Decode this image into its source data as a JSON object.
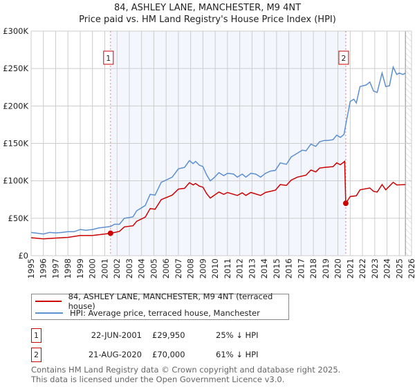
{
  "chart_data": {
    "type": "line",
    "title": "84, ASHLEY LANE, MANCHESTER, M9 4NT",
    "subtitle": "Price paid vs. HM Land Registry's House Price Index (HPI)",
    "xlim": [
      1995,
      2026
    ],
    "ylim": [
      0,
      300000
    ],
    "x_ticks": [
      "1995",
      "1996",
      "1997",
      "1998",
      "1999",
      "2000",
      "2001",
      "2002",
      "2003",
      "2004",
      "2005",
      "2006",
      "2007",
      "2008",
      "2009",
      "2010",
      "2011",
      "2012",
      "2013",
      "2014",
      "2015",
      "2016",
      "2017",
      "2018",
      "2019",
      "2020",
      "2021",
      "2022",
      "2023",
      "2024",
      "2025",
      "2026"
    ],
    "y_ticks": [
      {
        "v": 0,
        "label": "£0"
      },
      {
        "v": 50000,
        "label": "£50K"
      },
      {
        "v": 100000,
        "label": "£100K"
      },
      {
        "v": 150000,
        "label": "£150K"
      },
      {
        "v": 200000,
        "label": "£200K"
      },
      {
        "v": 250000,
        "label": "£250K"
      },
      {
        "v": 300000,
        "label": "£300K"
      }
    ],
    "grid": true,
    "ownership_shaded_range": [
      2001.47,
      2020.64
    ],
    "forecast_hatched_from": 2025.5,
    "series": [
      {
        "name": "84, ASHLEY LANE, MANCHESTER, M9 4NT (terraced house)",
        "color": "#cc0000",
        "points": [
          [
            1995,
            24
          ],
          [
            1996,
            22.5
          ],
          [
            1997,
            23.5
          ],
          [
            1998,
            24.5
          ],
          [
            1999,
            27
          ],
          [
            2000,
            27
          ],
          [
            2001,
            29
          ],
          [
            2001.47,
            29.95
          ],
          [
            2002.2,
            32.5
          ],
          [
            2002.6,
            38.5
          ],
          [
            2003.3,
            40
          ],
          [
            2003.6,
            46
          ],
          [
            2004.3,
            51.5
          ],
          [
            2004.7,
            63
          ],
          [
            2005.1,
            62
          ],
          [
            2005.6,
            75
          ],
          [
            2006.5,
            81
          ],
          [
            2007,
            89
          ],
          [
            2007.5,
            90
          ],
          [
            2007.9,
            97.5
          ],
          [
            2008.2,
            94.5
          ],
          [
            2008.4,
            96.5
          ],
          [
            2008.7,
            93
          ],
          [
            2009,
            91.5
          ],
          [
            2009.3,
            83
          ],
          [
            2009.6,
            77
          ],
          [
            2010.3,
            85
          ],
          [
            2010.7,
            82
          ],
          [
            2011,
            84.5
          ],
          [
            2011.8,
            80.5
          ],
          [
            2012.2,
            84
          ],
          [
            2012.5,
            80.5
          ],
          [
            2012.9,
            84.5
          ],
          [
            2013.7,
            80.5
          ],
          [
            2014.1,
            84.5
          ],
          [
            2014.9,
            87.5
          ],
          [
            2015.3,
            95
          ],
          [
            2015.8,
            94
          ],
          [
            2016.2,
            101
          ],
          [
            2016.7,
            105
          ],
          [
            2017.4,
            107.5
          ],
          [
            2017.8,
            114.5
          ],
          [
            2018.2,
            112
          ],
          [
            2018.5,
            117
          ],
          [
            2018.9,
            118
          ],
          [
            2019.6,
            119
          ],
          [
            2019.9,
            124
          ],
          [
            2020.2,
            121.5
          ],
          [
            2020.55,
            126
          ],
          [
            2020.64,
            70
          ],
          [
            2021,
            79
          ],
          [
            2021.5,
            80
          ],
          [
            2021.8,
            88
          ],
          [
            2022.6,
            90.5
          ],
          [
            2022.9,
            86
          ],
          [
            2023.2,
            85
          ],
          [
            2023.6,
            95
          ],
          [
            2023.9,
            88
          ],
          [
            2024.5,
            98
          ],
          [
            2024.8,
            94.5
          ],
          [
            2025.5,
            95
          ]
        ]
      },
      {
        "name": "HPI: Average price, terraced house, Manchester",
        "color": "#5b8fd0",
        "points": [
          [
            1995,
            31
          ],
          [
            1995.5,
            30
          ],
          [
            1996,
            29
          ],
          [
            1996.5,
            31
          ],
          [
            1997,
            30.5
          ],
          [
            1997.5,
            31
          ],
          [
            1998,
            32
          ],
          [
            1998.5,
            32
          ],
          [
            1999,
            35
          ],
          [
            1999.5,
            34
          ],
          [
            2000,
            35
          ],
          [
            2000.5,
            37
          ],
          [
            2001,
            38
          ],
          [
            2001.47,
            39
          ],
          [
            2001.8,
            42
          ],
          [
            2002.2,
            42
          ],
          [
            2002.6,
            50
          ],
          [
            2003,
            51
          ],
          [
            2003.3,
            52
          ],
          [
            2003.6,
            60
          ],
          [
            2004,
            64
          ],
          [
            2004.3,
            67
          ],
          [
            2004.7,
            82
          ],
          [
            2005.1,
            81
          ],
          [
            2005.6,
            98
          ],
          [
            2006,
            101
          ],
          [
            2006.5,
            105
          ],
          [
            2007,
            116
          ],
          [
            2007.5,
            118
          ],
          [
            2007.9,
            127
          ],
          [
            2008.2,
            123
          ],
          [
            2008.4,
            126
          ],
          [
            2008.7,
            121
          ],
          [
            2009,
            119
          ],
          [
            2009.3,
            108
          ],
          [
            2009.6,
            100
          ],
          [
            2009.9,
            104
          ],
          [
            2010.3,
            111
          ],
          [
            2010.7,
            107
          ],
          [
            2011,
            110
          ],
          [
            2011.5,
            109
          ],
          [
            2011.8,
            105
          ],
          [
            2012.2,
            109
          ],
          [
            2012.5,
            105
          ],
          [
            2012.9,
            110
          ],
          [
            2013.3,
            109
          ],
          [
            2013.7,
            105
          ],
          [
            2014.1,
            110
          ],
          [
            2014.5,
            113
          ],
          [
            2014.9,
            114
          ],
          [
            2015.3,
            124
          ],
          [
            2015.8,
            122
          ],
          [
            2016.2,
            132
          ],
          [
            2016.7,
            137
          ],
          [
            2017.1,
            141
          ],
          [
            2017.4,
            140
          ],
          [
            2017.8,
            149
          ],
          [
            2018.2,
            146
          ],
          [
            2018.5,
            152
          ],
          [
            2018.9,
            154
          ],
          [
            2019.2,
            154
          ],
          [
            2019.6,
            155
          ],
          [
            2019.9,
            161
          ],
          [
            2020.2,
            158
          ],
          [
            2020.5,
            162
          ],
          [
            2020.64,
            175
          ],
          [
            2021,
            206
          ],
          [
            2021.3,
            209
          ],
          [
            2021.5,
            204
          ],
          [
            2021.8,
            226
          ],
          [
            2022.3,
            228
          ],
          [
            2022.6,
            232
          ],
          [
            2022.9,
            220
          ],
          [
            2023.2,
            218
          ],
          [
            2023.6,
            244
          ],
          [
            2023.9,
            226
          ],
          [
            2024.2,
            227
          ],
          [
            2024.5,
            252
          ],
          [
            2024.8,
            242
          ],
          [
            2025,
            244
          ],
          [
            2025.3,
            242
          ],
          [
            2025.5,
            244
          ]
        ]
      }
    ],
    "y_units_in_series": "thousands GBP",
    "annotations": [
      {
        "label": "1",
        "x": 2001.47,
        "y": 29950
      },
      {
        "label": "2",
        "x": 2020.64,
        "y": 70000
      }
    ]
  },
  "legend": {
    "property": "84, ASHLEY LANE, MANCHESTER, M9 4NT (terraced house)",
    "hpi": "HPI: Average price, terraced house, Manchester"
  },
  "sales": [
    {
      "num": "1",
      "date": "22-JUN-2001",
      "price": "£29,950",
      "hpi": "25% ↓ HPI"
    },
    {
      "num": "2",
      "date": "21-AUG-2020",
      "price": "£70,000",
      "hpi": "61% ↓ HPI"
    }
  ],
  "footer": {
    "line1": "Contains HM Land Registry data © Crown copyright and database right 2025.",
    "line2": "This data is licensed under the Open Government Licence v3.0."
  }
}
